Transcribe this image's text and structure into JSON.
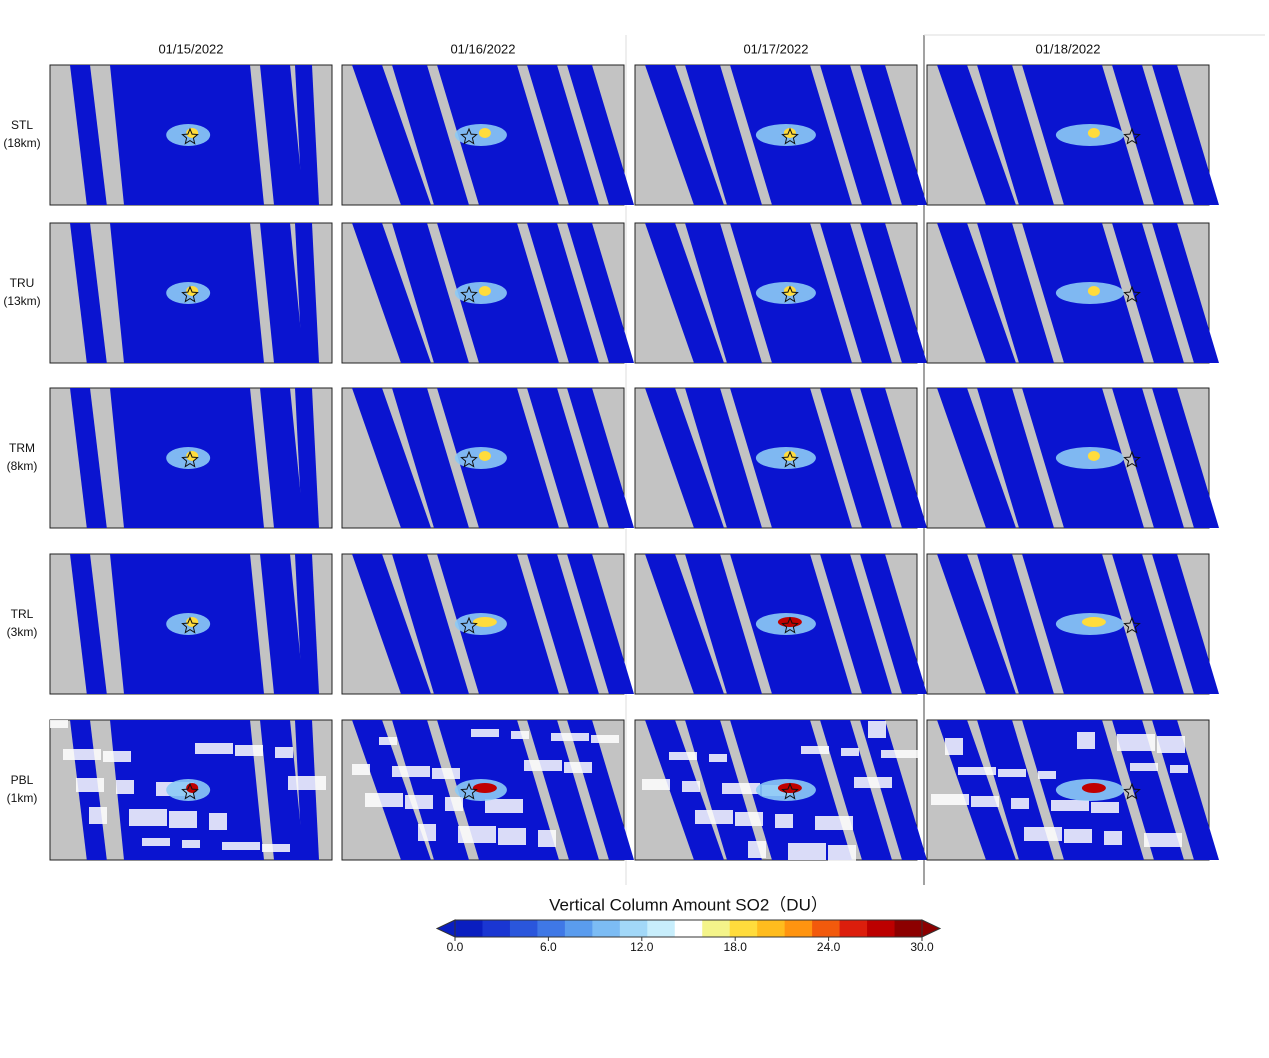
{
  "columns": [
    "01/15/2022",
    "01/16/2022",
    "01/17/2022",
    "01/18/2022"
  ],
  "rows": [
    {
      "name": "STL",
      "height": "(18km)"
    },
    {
      "name": "TRU",
      "height": "(13km)"
    },
    {
      "name": "TRM",
      "height": "(8km)"
    },
    {
      "name": "TRL",
      "height": "(3km)"
    },
    {
      "name": "PBL",
      "height": "(1km)"
    }
  ],
  "colorbar": {
    "title": "Vertical Column Amount SO2（DU）",
    "lim": [
      0,
      30
    ],
    "ticks": [
      {
        "value": 0,
        "label": "0.0"
      },
      {
        "value": 6,
        "label": "6.0"
      },
      {
        "value": 12,
        "label": "12.0"
      },
      {
        "value": 18,
        "label": "18.0"
      },
      {
        "value": 24,
        "label": "24.0"
      },
      {
        "value": 30,
        "label": "30.0"
      }
    ],
    "colors": [
      "#0a1ec0",
      "#1a36d2",
      "#2a56dc",
      "#3f78e6",
      "#5a9cee",
      "#7cbcf4",
      "#a2d8f8",
      "#c8eefc",
      "#ffffff",
      "#f4f48a",
      "#ffdc3c",
      "#ffbc1e",
      "#ff9410",
      "#f25a0c",
      "#dc1e0c",
      "#bc0000",
      "#8c0000"
    ]
  }
}
